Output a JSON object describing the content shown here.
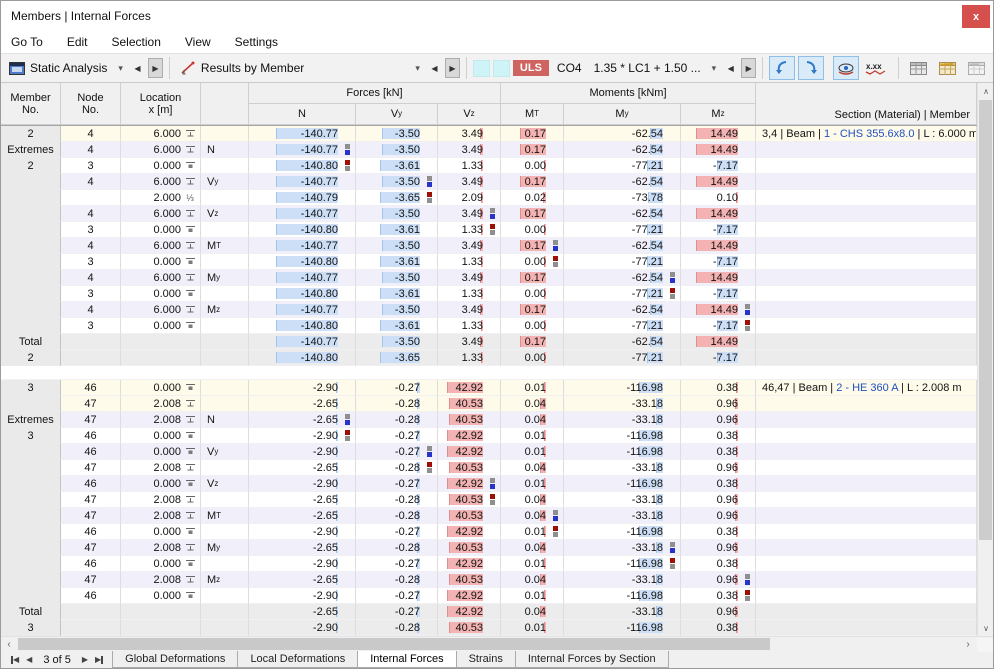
{
  "window": {
    "title": "Members | Internal Forces",
    "close_label": "x"
  },
  "menu": [
    "Go To",
    "Edit",
    "Selection",
    "View",
    "Settings"
  ],
  "toolbar": {
    "analysis_combo": "Static Analysis",
    "results_combo": "Results by Member",
    "uls_badge": "ULS",
    "co_label": "CO4",
    "combination_combo": "1.35 * LC1 + 1.50 ...",
    "overflow": "»",
    "icons": [
      "static-analysis-icon",
      "results-by-member-icon",
      "previous-icon",
      "next-icon",
      "color-scale-1",
      "color-scale-2",
      "smooth-back-icon",
      "smooth-forward-icon",
      "show-results-icon",
      "show-values-icon",
      "table-grid-icon",
      "table-edit-icon",
      "table-empty-icon",
      "chart-icon",
      "excel-export-icon",
      "filter-icon"
    ]
  },
  "table": {
    "header": {
      "member": [
        "Member",
        "No."
      ],
      "node": [
        "Node",
        "No."
      ],
      "location": [
        "Location",
        "x [m]"
      ],
      "forces": "Forces [kN]",
      "moments": "Moments [kNm]",
      "sub": [
        "N",
        "Vy",
        "Vz",
        "MT",
        "My",
        "Mz"
      ],
      "section": "Section (Material) | Member"
    },
    "labels": {
      "extremes": "Extremes",
      "total": "Total"
    },
    "column_max": [
      140.8,
      3.65,
      42.92,
      0.17,
      116.98,
      14.49
    ],
    "bar_zones": [
      62,
      40,
      36,
      26,
      24,
      42
    ],
    "groups": [
      {
        "member": "2",
        "summary": [
          {
            "node": "4",
            "loc": "6.000",
            "mark": "end",
            "ext": "",
            "vals": [
              "-140.77",
              "-3.50",
              "3.49",
              "0.17",
              "-62.54",
              "14.49"
            ],
            "section": {
              "pre": "3,4 | Beam | ",
              "link": "1 - CHS 355.6x8.0",
              "post": " | L : 6.000 m"
            }
          }
        ],
        "extremes": [
          {
            "node": "4",
            "loc": "6.000",
            "mark": "end",
            "ext": "N",
            "vals": [
              "-140.77",
              "-3.50",
              "3.49",
              "0.17",
              "-62.54",
              "14.49"
            ],
            "m": [
              1,
              0,
              0,
              0,
              0,
              0
            ]
          },
          {
            "node": "3",
            "loc": "0.000",
            "mark": "start",
            "ext": "",
            "vals": [
              "-140.80",
              "-3.61",
              "1.33",
              "0.00",
              "-77.21",
              "-7.17"
            ],
            "m": [
              -1,
              0,
              0,
              0,
              0,
              0
            ]
          },
          {
            "node": "4",
            "loc": "6.000",
            "mark": "end",
            "ext": "Vy",
            "vals": [
              "-140.77",
              "-3.50",
              "3.49",
              "0.17",
              "-62.54",
              "14.49"
            ],
            "m": [
              0,
              1,
              0,
              0,
              0,
              0
            ]
          },
          {
            "node": "",
            "loc": "2.000",
            "mark": "third",
            "ext": "",
            "vals": [
              "-140.79",
              "-3.65",
              "2.09",
              "0.02",
              "-73.78",
              "0.10"
            ],
            "m": [
              0,
              -1,
              0,
              0,
              0,
              0
            ]
          },
          {
            "node": "4",
            "loc": "6.000",
            "mark": "end",
            "ext": "Vz",
            "vals": [
              "-140.77",
              "-3.50",
              "3.49",
              "0.17",
              "-62.54",
              "14.49"
            ],
            "m": [
              0,
              0,
              1,
              0,
              0,
              0
            ]
          },
          {
            "node": "3",
            "loc": "0.000",
            "mark": "start",
            "ext": "",
            "vals": [
              "-140.80",
              "-3.61",
              "1.33",
              "0.00",
              "-77.21",
              "-7.17"
            ],
            "m": [
              0,
              0,
              -1,
              0,
              0,
              0
            ]
          },
          {
            "node": "4",
            "loc": "6.000",
            "mark": "end",
            "ext": "MT",
            "vals": [
              "-140.77",
              "-3.50",
              "3.49",
              "0.17",
              "-62.54",
              "14.49"
            ],
            "m": [
              0,
              0,
              0,
              1,
              0,
              0
            ]
          },
          {
            "node": "3",
            "loc": "0.000",
            "mark": "start",
            "ext": "",
            "vals": [
              "-140.80",
              "-3.61",
              "1.33",
              "0.00",
              "-77.21",
              "-7.17"
            ],
            "m": [
              0,
              0,
              0,
              -1,
              0,
              0
            ]
          },
          {
            "node": "4",
            "loc": "6.000",
            "mark": "end",
            "ext": "My",
            "vals": [
              "-140.77",
              "-3.50",
              "3.49",
              "0.17",
              "-62.54",
              "14.49"
            ],
            "m": [
              0,
              0,
              0,
              0,
              1,
              0
            ]
          },
          {
            "node": "3",
            "loc": "0.000",
            "mark": "start",
            "ext": "",
            "vals": [
              "-140.80",
              "-3.61",
              "1.33",
              "0.00",
              "-77.21",
              "-7.17"
            ],
            "m": [
              0,
              0,
              0,
              0,
              -1,
              0
            ]
          },
          {
            "node": "4",
            "loc": "6.000",
            "mark": "end",
            "ext": "Mz",
            "vals": [
              "-140.77",
              "-3.50",
              "3.49",
              "0.17",
              "-62.54",
              "14.49"
            ],
            "m": [
              0,
              0,
              0,
              0,
              0,
              1
            ]
          },
          {
            "node": "3",
            "loc": "0.000",
            "mark": "start",
            "ext": "",
            "vals": [
              "-140.80",
              "-3.61",
              "1.33",
              "0.00",
              "-77.21",
              "-7.17"
            ],
            "m": [
              0,
              0,
              0,
              0,
              0,
              -1
            ]
          }
        ],
        "total": [
          {
            "vals": [
              "-140.77",
              "-3.50",
              "3.49",
              "0.17",
              "-62.54",
              "14.49"
            ]
          },
          {
            "vals": [
              "-140.80",
              "-3.65",
              "1.33",
              "0.00",
              "-77.21",
              "-7.17"
            ]
          }
        ]
      },
      {
        "member": "3",
        "summary": [
          {
            "node": "46",
            "loc": "0.000",
            "mark": "start",
            "ext": "",
            "vals": [
              "-2.90",
              "-0.27",
              "42.92",
              "0.01",
              "-116.98",
              "0.38"
            ],
            "section": {
              "pre": "46,47 | Beam | ",
              "link": "2 - HE 360 A",
              "post": " | L : 2.008 m"
            }
          },
          {
            "node": "47",
            "loc": "2.008",
            "mark": "end",
            "ext": "",
            "vals": [
              "-2.65",
              "-0.28",
              "40.53",
              "0.04",
              "-33.18",
              "0.96"
            ],
            "section": {
              "pre": "",
              "link": "",
              "post": ""
            }
          }
        ],
        "extremes": [
          {
            "node": "47",
            "loc": "2.008",
            "mark": "end",
            "ext": "N",
            "vals": [
              "-2.65",
              "-0.28",
              "40.53",
              "0.04",
              "-33.18",
              "0.96"
            ],
            "m": [
              1,
              0,
              0,
              0,
              0,
              0
            ]
          },
          {
            "node": "46",
            "loc": "0.000",
            "mark": "start",
            "ext": "",
            "vals": [
              "-2.90",
              "-0.27",
              "42.92",
              "0.01",
              "-116.98",
              "0.38"
            ],
            "m": [
              -1,
              0,
              0,
              0,
              0,
              0
            ]
          },
          {
            "node": "46",
            "loc": "0.000",
            "mark": "start",
            "ext": "Vy",
            "vals": [
              "-2.90",
              "-0.27",
              "42.92",
              "0.01",
              "-116.98",
              "0.38"
            ],
            "m": [
              0,
              1,
              0,
              0,
              0,
              0
            ]
          },
          {
            "node": "47",
            "loc": "2.008",
            "mark": "end",
            "ext": "",
            "vals": [
              "-2.65",
              "-0.28",
              "40.53",
              "0.04",
              "-33.18",
              "0.96"
            ],
            "m": [
              0,
              -1,
              0,
              0,
              0,
              0
            ]
          },
          {
            "node": "46",
            "loc": "0.000",
            "mark": "start",
            "ext": "Vz",
            "vals": [
              "-2.90",
              "-0.27",
              "42.92",
              "0.01",
              "-116.98",
              "0.38"
            ],
            "m": [
              0,
              0,
              1,
              0,
              0,
              0
            ]
          },
          {
            "node": "47",
            "loc": "2.008",
            "mark": "end",
            "ext": "",
            "vals": [
              "-2.65",
              "-0.28",
              "40.53",
              "0.04",
              "-33.18",
              "0.96"
            ],
            "m": [
              0,
              0,
              -1,
              0,
              0,
              0
            ]
          },
          {
            "node": "47",
            "loc": "2.008",
            "mark": "end",
            "ext": "MT",
            "vals": [
              "-2.65",
              "-0.28",
              "40.53",
              "0.04",
              "-33.18",
              "0.96"
            ],
            "m": [
              0,
              0,
              0,
              1,
              0,
              0
            ]
          },
          {
            "node": "46",
            "loc": "0.000",
            "mark": "start",
            "ext": "",
            "vals": [
              "-2.90",
              "-0.27",
              "42.92",
              "0.01",
              "-116.98",
              "0.38"
            ],
            "m": [
              0,
              0,
              0,
              -1,
              0,
              0
            ]
          },
          {
            "node": "47",
            "loc": "2.008",
            "mark": "end",
            "ext": "My",
            "vals": [
              "-2.65",
              "-0.28",
              "40.53",
              "0.04",
              "-33.18",
              "0.96"
            ],
            "m": [
              0,
              0,
              0,
              0,
              1,
              0
            ]
          },
          {
            "node": "46",
            "loc": "0.000",
            "mark": "start",
            "ext": "",
            "vals": [
              "-2.90",
              "-0.27",
              "42.92",
              "0.01",
              "-116.98",
              "0.38"
            ],
            "m": [
              0,
              0,
              0,
              0,
              -1,
              0
            ]
          },
          {
            "node": "47",
            "loc": "2.008",
            "mark": "end",
            "ext": "Mz",
            "vals": [
              "-2.65",
              "-0.28",
              "40.53",
              "0.04",
              "-33.18",
              "0.96"
            ],
            "m": [
              0,
              0,
              0,
              0,
              0,
              1
            ]
          },
          {
            "node": "46",
            "loc": "0.000",
            "mark": "start",
            "ext": "",
            "vals": [
              "-2.90",
              "-0.27",
              "42.92",
              "0.01",
              "-116.98",
              "0.38"
            ],
            "m": [
              0,
              0,
              0,
              0,
              0,
              -1
            ]
          }
        ],
        "total": [
          {
            "vals": [
              "-2.65",
              "-0.27",
              "42.92",
              "0.04",
              "-33.18",
              "0.96"
            ]
          },
          {
            "vals": [
              "-2.90",
              "-0.28",
              "40.53",
              "0.01",
              "-116.98",
              "0.38"
            ]
          }
        ]
      }
    ]
  },
  "scrollbar": {
    "left": "‹",
    "right": "›",
    "up": "∧",
    "down": "∨"
  },
  "tabbar": {
    "nav_label": "3 of 5",
    "tabs": [
      {
        "label": "Global Deformations",
        "active": false
      },
      {
        "label": "Local Deformations",
        "active": false
      },
      {
        "label": "Internal Forces",
        "active": true
      },
      {
        "label": "Strains",
        "active": false
      },
      {
        "label": "Internal Forces by Section",
        "active": false
      }
    ]
  },
  "colors": {
    "close_red": "#D5504C",
    "uls_red": "#CE6360",
    "link_blue": "#2050C0",
    "bar_negative": "#CDDFF6",
    "bar_positive": "#F4B3B3",
    "marker_blue": "#2733C9",
    "marker_red": "#9E1006",
    "marker_gray": "#8F8F8F",
    "row_summary": "#FFFBEB",
    "row_alt": "#F1F0FA",
    "row_total": "#ECECEC"
  }
}
